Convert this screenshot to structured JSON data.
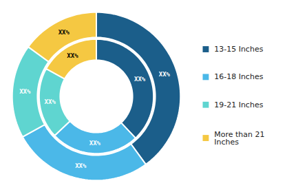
{
  "chart_data": {
    "type": "pie",
    "categories": [
      "13-15 Inches",
      "16-18 Inches",
      "19-21 Inches",
      "More than 21\nInches"
    ],
    "colors": [
      "#1b5e8a",
      "#4bb8e8",
      "#5fd5d0",
      "#f5c842"
    ],
    "series": [
      {
        "values": [
          40,
          27,
          18,
          15
        ],
        "value_labels": [
          "XX%",
          "XX%",
          "XX%",
          "XX%"
        ]
      },
      {
        "values": [
          38,
          25,
          20,
          17
        ],
        "value_labels": [
          "XX%",
          "XX%",
          "XX%",
          "XX%"
        ]
      }
    ],
    "data_labels": true,
    "legend": "right"
  }
}
